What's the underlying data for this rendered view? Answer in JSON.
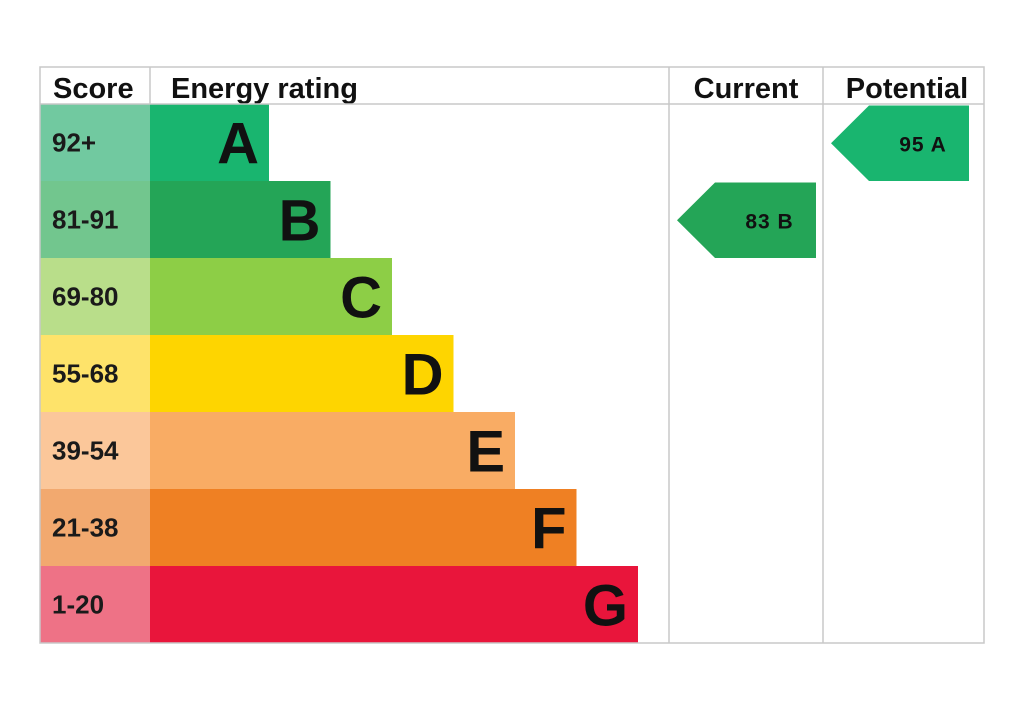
{
  "headers": {
    "score": "Score",
    "energy_rating": "Energy rating",
    "current": "Current",
    "potential": "Potential"
  },
  "chart_data": {
    "type": "bar",
    "bands": [
      {
        "letter": "A",
        "score_range": "92+",
        "color": "#19B56F",
        "score_bg": "#71C9A0"
      },
      {
        "letter": "B",
        "score_range": "81-91",
        "color": "#24A557",
        "score_bg": "#72C68E"
      },
      {
        "letter": "C",
        "score_range": "69-80",
        "color": "#8DCE46",
        "score_bg": "#B9DE8A"
      },
      {
        "letter": "D",
        "score_range": "55-68",
        "color": "#FED500",
        "score_bg": "#FEE36A"
      },
      {
        "letter": "E",
        "score_range": "39-54",
        "color": "#F9AC64",
        "score_bg": "#FBC79A"
      },
      {
        "letter": "F",
        "score_range": "21-38",
        "color": "#EF8023",
        "score_bg": "#F2A96F"
      },
      {
        "letter": "G",
        "score_range": "1-20",
        "color": "#E9153B",
        "score_bg": "#EE7286"
      }
    ],
    "current": {
      "value": 83,
      "band": "B",
      "label": "83  B",
      "color": "#24A557"
    },
    "potential": {
      "value": 95,
      "band": "A",
      "label": "95  A",
      "color": "#19B56F"
    }
  }
}
